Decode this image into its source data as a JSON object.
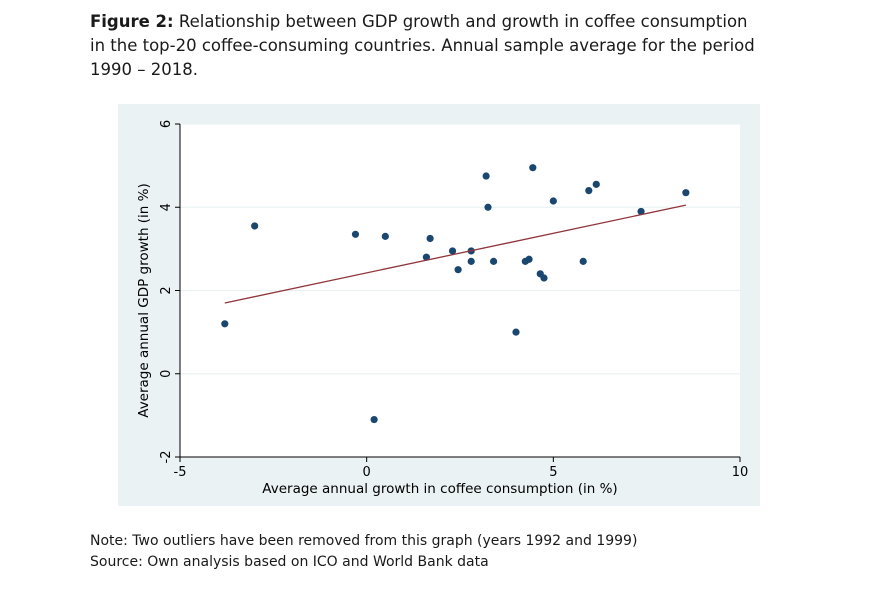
{
  "caption": {
    "label": "Figure 2:",
    "line1": "Relationship between GDP growth and growth in coffee consumption",
    "line2": "in the top-20 coffee-consuming countries. Annual sample average for the period",
    "line3": "1990 – 2018."
  },
  "notes": {
    "note": "Note: Two outliers have been removed from this graph (years 1992 and 1999)",
    "source": "Source: Own analysis based on ICO and World Bank data"
  },
  "colors": {
    "panel_bg": "#eaf2f3",
    "plot_bg": "#ffffff",
    "point": "#1a476f",
    "fit_line": "#90353b"
  },
  "chart_data": {
    "type": "scatter",
    "title": "",
    "xlabel": "Average annual growth in coffee consumption (in %)",
    "ylabel": "Average annual GDP growth (in %)",
    "xlim": [
      -5,
      10
    ],
    "ylim": [
      -2,
      6
    ],
    "xticks": [
      -5,
      0,
      5,
      10
    ],
    "yticks": [
      -2,
      0,
      2,
      4,
      6
    ],
    "xtick_labels": [
      "-5",
      "0",
      "5",
      "10"
    ],
    "ytick_labels": [
      "-2",
      "0",
      "2",
      "4",
      "6"
    ],
    "grid": "horizontal",
    "points": [
      {
        "x": -3.8,
        "y": 1.2
      },
      {
        "x": -3.0,
        "y": 3.55
      },
      {
        "x": -0.3,
        "y": 3.35
      },
      {
        "x": 0.2,
        "y": -1.1
      },
      {
        "x": 0.5,
        "y": 3.3
      },
      {
        "x": 1.6,
        "y": 2.8
      },
      {
        "x": 1.7,
        "y": 3.25
      },
      {
        "x": 2.3,
        "y": 2.95
      },
      {
        "x": 2.45,
        "y": 2.5
      },
      {
        "x": 2.8,
        "y": 2.95
      },
      {
        "x": 2.8,
        "y": 2.7
      },
      {
        "x": 3.2,
        "y": 4.75
      },
      {
        "x": 3.25,
        "y": 4.0
      },
      {
        "x": 3.4,
        "y": 2.7
      },
      {
        "x": 4.0,
        "y": 1.0
      },
      {
        "x": 4.25,
        "y": 2.7
      },
      {
        "x": 4.35,
        "y": 2.75
      },
      {
        "x": 4.45,
        "y": 4.95
      },
      {
        "x": 4.65,
        "y": 2.4
      },
      {
        "x": 4.75,
        "y": 2.3
      },
      {
        "x": 5.0,
        "y": 4.15
      },
      {
        "x": 5.8,
        "y": 2.7
      },
      {
        "x": 5.95,
        "y": 4.4
      },
      {
        "x": 6.15,
        "y": 4.55
      },
      {
        "x": 7.35,
        "y": 3.9
      },
      {
        "x": 8.55,
        "y": 4.35
      }
    ],
    "fit_line": {
      "x": [
        -3.8,
        8.55
      ],
      "y": [
        1.7,
        4.05
      ]
    }
  }
}
